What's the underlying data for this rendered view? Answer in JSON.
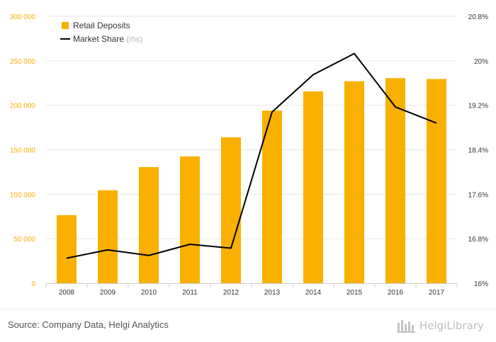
{
  "chart_data": {
    "type": "bar",
    "categories": [
      "2008",
      "2009",
      "2010",
      "2011",
      "2012",
      "2013",
      "2014",
      "2015",
      "2016",
      "2017"
    ],
    "series": [
      {
        "name": "Retail Deposits",
        "type": "bar",
        "axis": "left",
        "color": "#F9B000",
        "values": [
          76500,
          104500,
          130500,
          142500,
          164000,
          194000,
          215500,
          227000,
          230500,
          229500
        ]
      },
      {
        "name": "Market Share",
        "legend_suffix": "(rhs)",
        "type": "line",
        "axis": "right",
        "color": "#000000",
        "values": [
          16.45,
          16.6,
          16.5,
          16.7,
          16.63,
          19.08,
          19.75,
          20.13,
          19.17,
          18.88
        ]
      }
    ],
    "y_left": {
      "min": 0,
      "max": 300000,
      "ticks": [
        0,
        50000,
        100000,
        150000,
        200000,
        250000,
        300000
      ],
      "tick_labels": [
        "0",
        "50 000",
        "100 000",
        "150 000",
        "200 000",
        "250 000",
        "300 000"
      ],
      "label_color": "#F9B000"
    },
    "y_right": {
      "min": 16,
      "max": 20.8,
      "ticks": [
        16,
        16.8,
        17.6,
        18.4,
        19.2,
        20,
        20.8
      ],
      "tick_labels": [
        "16%",
        "16.8%",
        "17.6%",
        "18.4%",
        "19.2%",
        "20%",
        "20.8%"
      ]
    },
    "legend_position": "top-left",
    "grid": true
  },
  "footer": {
    "source_text": "Source: Company Data, Helgi Analytics",
    "logo_text": "HelgiLibrary",
    "logo_icon": "helgi-library-icon"
  }
}
